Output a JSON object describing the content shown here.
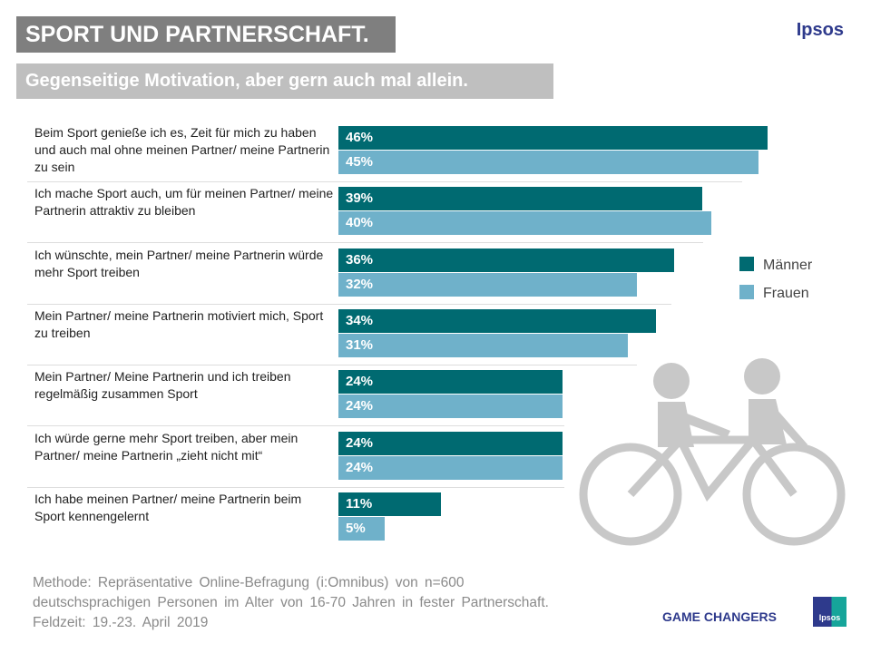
{
  "header": {
    "title": "SPORT UND PARTNERSCHAFT.",
    "subtitle": "Gegenseitige Motivation, aber gern auch mal allein.",
    "brand": "Ipsos"
  },
  "chart_data": {
    "type": "bar",
    "orientation": "horizontal",
    "categories": [
      "Beim Sport genieße ich es, Zeit für mich zu haben und auch mal ohne meinen Partner/ meine Partnerin zu sein",
      "Ich mache Sport auch, um für meinen Partner/ meine Partnerin attraktiv zu bleiben",
      "Ich wünschte, mein Partner/ meine Partnerin würde mehr Sport treiben",
      "Mein Partner/ meine Partnerin motiviert mich, Sport zu treiben",
      "Mein Partner/ Meine Partnerin und ich treiben regelmäßig zusammen Sport",
      "Ich würde gerne mehr Sport treiben, aber mein Partner/ meine Partnerin „zieht nicht mit“",
      "Ich habe meinen Partner/ meine Partnerin beim Sport kennengelernt"
    ],
    "series": [
      {
        "name": "Männer",
        "color": "#006a71",
        "values": [
          46,
          39,
          36,
          34,
          24,
          24,
          11
        ]
      },
      {
        "name": "Frauen",
        "color": "#6fb1ca",
        "values": [
          45,
          40,
          32,
          31,
          24,
          24,
          5
        ]
      }
    ],
    "unit": "%",
    "legend": "right"
  },
  "footer": {
    "method": "Methode: Repräsentative Online-Befragung (i:Omnibus) von n=600",
    "method2": "deutschsprachigen Personen im Alter von 16-70 Jahren in fester Partnerschaft.",
    "field": "Feldzeit: 19.-23. April 2019",
    "tagline": "GAME CHANGERS",
    "logo": "Ipsos"
  }
}
